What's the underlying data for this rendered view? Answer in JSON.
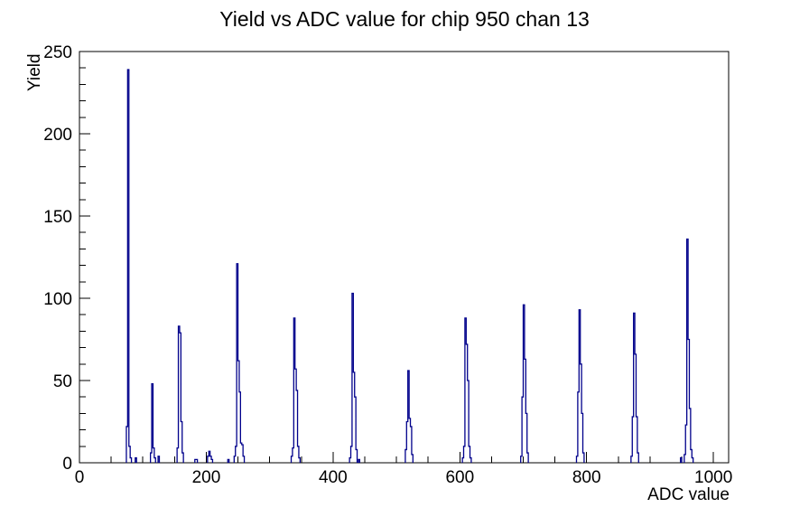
{
  "title": "Yield vs ADC value for chip 950 chan 13",
  "colors": {
    "histogram_line": "#00008b",
    "axis": "#000000",
    "background": "#ffffff"
  },
  "chart_data": {
    "type": "bar",
    "title": "Yield vs ADC value for chip 950 chan 13",
    "xlabel": "ADC value",
    "ylabel": "Yield",
    "xlim": [
      0,
      1024
    ],
    "ylim": [
      0,
      250
    ],
    "x_major_ticks": [
      0,
      200,
      400,
      600,
      800,
      1000
    ],
    "x_minor_step": 50,
    "y_major_ticks": [
      0,
      50,
      100,
      150,
      200,
      250
    ],
    "y_minor_step": 10,
    "grid": false,
    "legend_position": "none",
    "line_color": "#00008b",
    "bin_width": 2,
    "bins": [
      [
        74,
        22
      ],
      [
        76,
        239
      ],
      [
        78,
        10
      ],
      [
        80,
        3
      ],
      [
        88,
        3
      ],
      [
        112,
        6
      ],
      [
        114,
        48
      ],
      [
        116,
        9
      ],
      [
        118,
        3
      ],
      [
        124,
        4
      ],
      [
        154,
        9
      ],
      [
        156,
        83
      ],
      [
        158,
        79
      ],
      [
        160,
        25
      ],
      [
        162,
        6
      ],
      [
        182,
        2
      ],
      [
        184,
        2
      ],
      [
        202,
        4
      ],
      [
        204,
        7
      ],
      [
        206,
        4
      ],
      [
        208,
        2
      ],
      [
        234,
        2
      ],
      [
        244,
        4
      ],
      [
        246,
        10
      ],
      [
        248,
        121
      ],
      [
        250,
        62
      ],
      [
        252,
        43
      ],
      [
        254,
        12
      ],
      [
        256,
        11
      ],
      [
        258,
        4
      ],
      [
        334,
        4
      ],
      [
        336,
        9
      ],
      [
        338,
        88
      ],
      [
        340,
        57
      ],
      [
        342,
        44
      ],
      [
        344,
        10
      ],
      [
        346,
        3
      ],
      [
        426,
        3
      ],
      [
        428,
        10
      ],
      [
        430,
        103
      ],
      [
        432,
        55
      ],
      [
        434,
        40
      ],
      [
        436,
        8
      ],
      [
        440,
        2
      ],
      [
        514,
        8
      ],
      [
        516,
        25
      ],
      [
        518,
        56
      ],
      [
        520,
        27
      ],
      [
        522,
        22
      ],
      [
        524,
        5
      ],
      [
        604,
        3
      ],
      [
        606,
        10
      ],
      [
        608,
        88
      ],
      [
        610,
        72
      ],
      [
        612,
        50
      ],
      [
        614,
        10
      ],
      [
        616,
        3
      ],
      [
        696,
        4
      ],
      [
        698,
        40
      ],
      [
        700,
        96
      ],
      [
        702,
        63
      ],
      [
        704,
        30
      ],
      [
        706,
        6
      ],
      [
        784,
        4
      ],
      [
        786,
        43
      ],
      [
        788,
        93
      ],
      [
        790,
        60
      ],
      [
        792,
        30
      ],
      [
        794,
        6
      ],
      [
        870,
        4
      ],
      [
        872,
        28
      ],
      [
        874,
        91
      ],
      [
        876,
        66
      ],
      [
        878,
        28
      ],
      [
        880,
        6
      ],
      [
        948,
        3
      ],
      [
        954,
        5
      ],
      [
        956,
        23
      ],
      [
        958,
        136
      ],
      [
        960,
        75
      ],
      [
        962,
        33
      ],
      [
        964,
        8
      ],
      [
        966,
        3
      ]
    ],
    "peak_summary": [
      {
        "adc": 77,
        "yield": 239
      },
      {
        "adc": 114,
        "yield": 48
      },
      {
        "adc": 157,
        "yield": 83
      },
      {
        "adc": 249,
        "yield": 121
      },
      {
        "adc": 339,
        "yield": 88
      },
      {
        "adc": 430,
        "yield": 103
      },
      {
        "adc": 518,
        "yield": 56
      },
      {
        "adc": 610,
        "yield": 88
      },
      {
        "adc": 700,
        "yield": 96
      },
      {
        "adc": 788,
        "yield": 93
      },
      {
        "adc": 875,
        "yield": 91
      },
      {
        "adc": 960,
        "yield": 136
      }
    ]
  }
}
